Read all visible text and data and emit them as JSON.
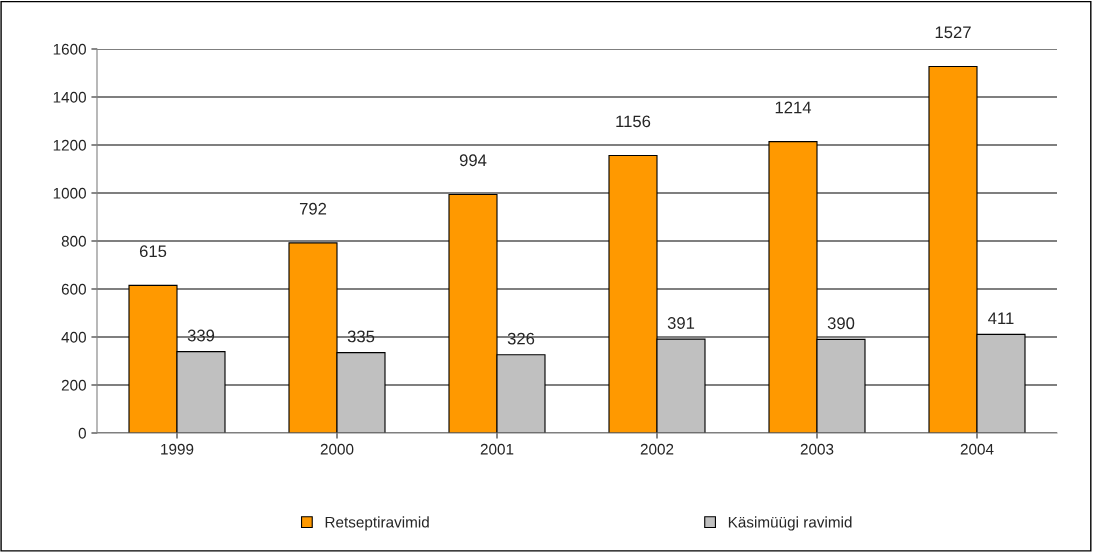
{
  "chart_data": {
    "type": "bar",
    "categories": [
      "1999",
      "2000",
      "2001",
      "2002",
      "2003",
      "2004"
    ],
    "series": [
      {
        "name": "Retseptiravimid",
        "color": "#ff9900",
        "values": [
          615,
          792,
          994,
          1156,
          1214,
          1527
        ]
      },
      {
        "name": "Käsimüügi ravimid",
        "color": "#c0c0c0",
        "values": [
          339,
          335,
          326,
          391,
          390,
          411
        ]
      }
    ],
    "ylim": [
      0,
      1600
    ],
    "yticks": [
      0,
      200,
      400,
      600,
      800,
      1000,
      1200,
      1400,
      1600
    ],
    "grid": "y",
    "legend": "bottom",
    "data_labels": true
  }
}
